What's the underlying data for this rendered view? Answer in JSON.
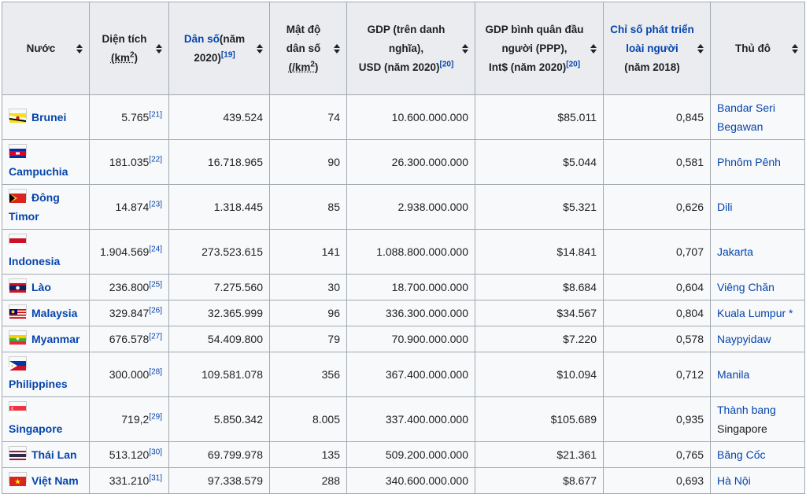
{
  "headers": {
    "country": "Nước",
    "area": "Diện tích",
    "area_unit": "(km",
    "area_unit_sup": "2",
    "area_unit_close": ")",
    "population": "Dân số",
    "population_year": "(năm 2020)",
    "population_ref": "[19]",
    "density_line1": "Mật độ",
    "density_line2": "dân số",
    "density_unit": "(/km",
    "density_unit_sup": "2",
    "density_unit_close": ")",
    "gdp": "GDP (trên danh nghĩa),",
    "gdp_unit": "USD (năm 2020)",
    "gdp_ref": "[20]",
    "gdp_ppp": "GDP bình quân đầu người (PPP),",
    "gdp_ppp_unit": "Int$ (năm 2020)",
    "gdp_ppp_ref": "[20]",
    "hdi": "Chỉ số phát triển loài người",
    "hdi_year": "(năm 2018)",
    "capital": "Thủ đô"
  },
  "rows": [
    {
      "country": "Brunei",
      "area": "5.765",
      "ref": "[21]",
      "population": "439.524",
      "density": "74",
      "gdp": "10.600.000.000",
      "gdp_ppp": "$85.011",
      "hdi": "0,845",
      "capital": "Bandar Seri Begawan",
      "capital_link": true
    },
    {
      "country": "Campuchia",
      "area": "181.035",
      "ref": "[22]",
      "population": "16.718.965",
      "density": "90",
      "gdp": "26.300.000.000",
      "gdp_ppp": "$5.044",
      "hdi": "0,581",
      "capital": "Phnôm Pênh",
      "capital_link": true
    },
    {
      "country": "Đông Timor",
      "area": "14.874",
      "ref": "[23]",
      "population": "1.318.445",
      "density": "85",
      "gdp": "2.938.000.000",
      "gdp_ppp": "$5.321",
      "hdi": "0,626",
      "capital": "Dili",
      "capital_link": true
    },
    {
      "country": "Indonesia",
      "area": "1.904.569",
      "ref": "[24]",
      "population": "273.523.615",
      "density": "141",
      "gdp": "1.088.800.000.000",
      "gdp_ppp": "$14.841",
      "hdi": "0,707",
      "capital": "Jakarta",
      "capital_link": true
    },
    {
      "country": "Lào",
      "area": "236.800",
      "ref": "[25]",
      "population": "7.275.560",
      "density": "30",
      "gdp": "18.700.000.000",
      "gdp_ppp": "$8.684",
      "hdi": "0,604",
      "capital": "Viêng Chăn",
      "capital_link": true
    },
    {
      "country": "Malaysia",
      "area": "329.847",
      "ref": "[26]",
      "population": "32.365.999",
      "density": "96",
      "gdp": "336.300.000.000",
      "gdp_ppp": "$34.567",
      "hdi": "0,804",
      "capital": "Kuala Lumpur *",
      "capital_link": true
    },
    {
      "country": "Myanmar",
      "area": "676.578",
      "ref": "[27]",
      "population": "54.409.800",
      "density": "79",
      "gdp": "70.900.000.000",
      "gdp_ppp": "$7.220",
      "hdi": "0,578",
      "capital": "Naypyidaw",
      "capital_link": true
    },
    {
      "country": "Philippines",
      "area": "300.000",
      "ref": "[28]",
      "population": "109.581.078",
      "density": "356",
      "gdp": "367.400.000.000",
      "gdp_ppp": "$10.094",
      "hdi": "0,712",
      "capital": "Manila",
      "capital_link": true
    },
    {
      "country": "Singapore",
      "area": "719,2",
      "ref": "[29]",
      "population": "5.850.342",
      "density": "8.005",
      "gdp": "337.400.000.000",
      "gdp_ppp": "$105.689",
      "hdi": "0,935",
      "capital": "Thành bang",
      "capital2": "Singapore",
      "capital_link": true
    },
    {
      "country": "Thái Lan",
      "area": "513.120",
      "ref": "[30]",
      "population": "69.799.978",
      "density": "135",
      "gdp": "509.200.000.000",
      "gdp_ppp": "$21.361",
      "hdi": "0,765",
      "capital": "Băng Cốc",
      "capital_link": true
    },
    {
      "country": "Việt Nam",
      "area": "331.210",
      "ref": "[31]",
      "population": "97.338.579",
      "density": "288",
      "gdp": "340.600.000.000",
      "gdp_ppp": "$8.677",
      "hdi": "0,693",
      "capital": "Hà Nội",
      "capital_link": true
    }
  ],
  "flags": [
    "brunei-flag-icon",
    "cambodia-flag-icon",
    "east-timor-flag-icon",
    "indonesia-flag-icon",
    "laos-flag-icon",
    "malaysia-flag-icon",
    "myanmar-flag-icon",
    "philippines-flag-icon",
    "singapore-flag-icon",
    "thailand-flag-icon",
    "vietnam-flag-icon"
  ],
  "colors": {
    "link": "#0645ad",
    "header_bg": "#eaecf0",
    "cell_bg": "#f8f9fa",
    "border": "#a2a9b1"
  }
}
